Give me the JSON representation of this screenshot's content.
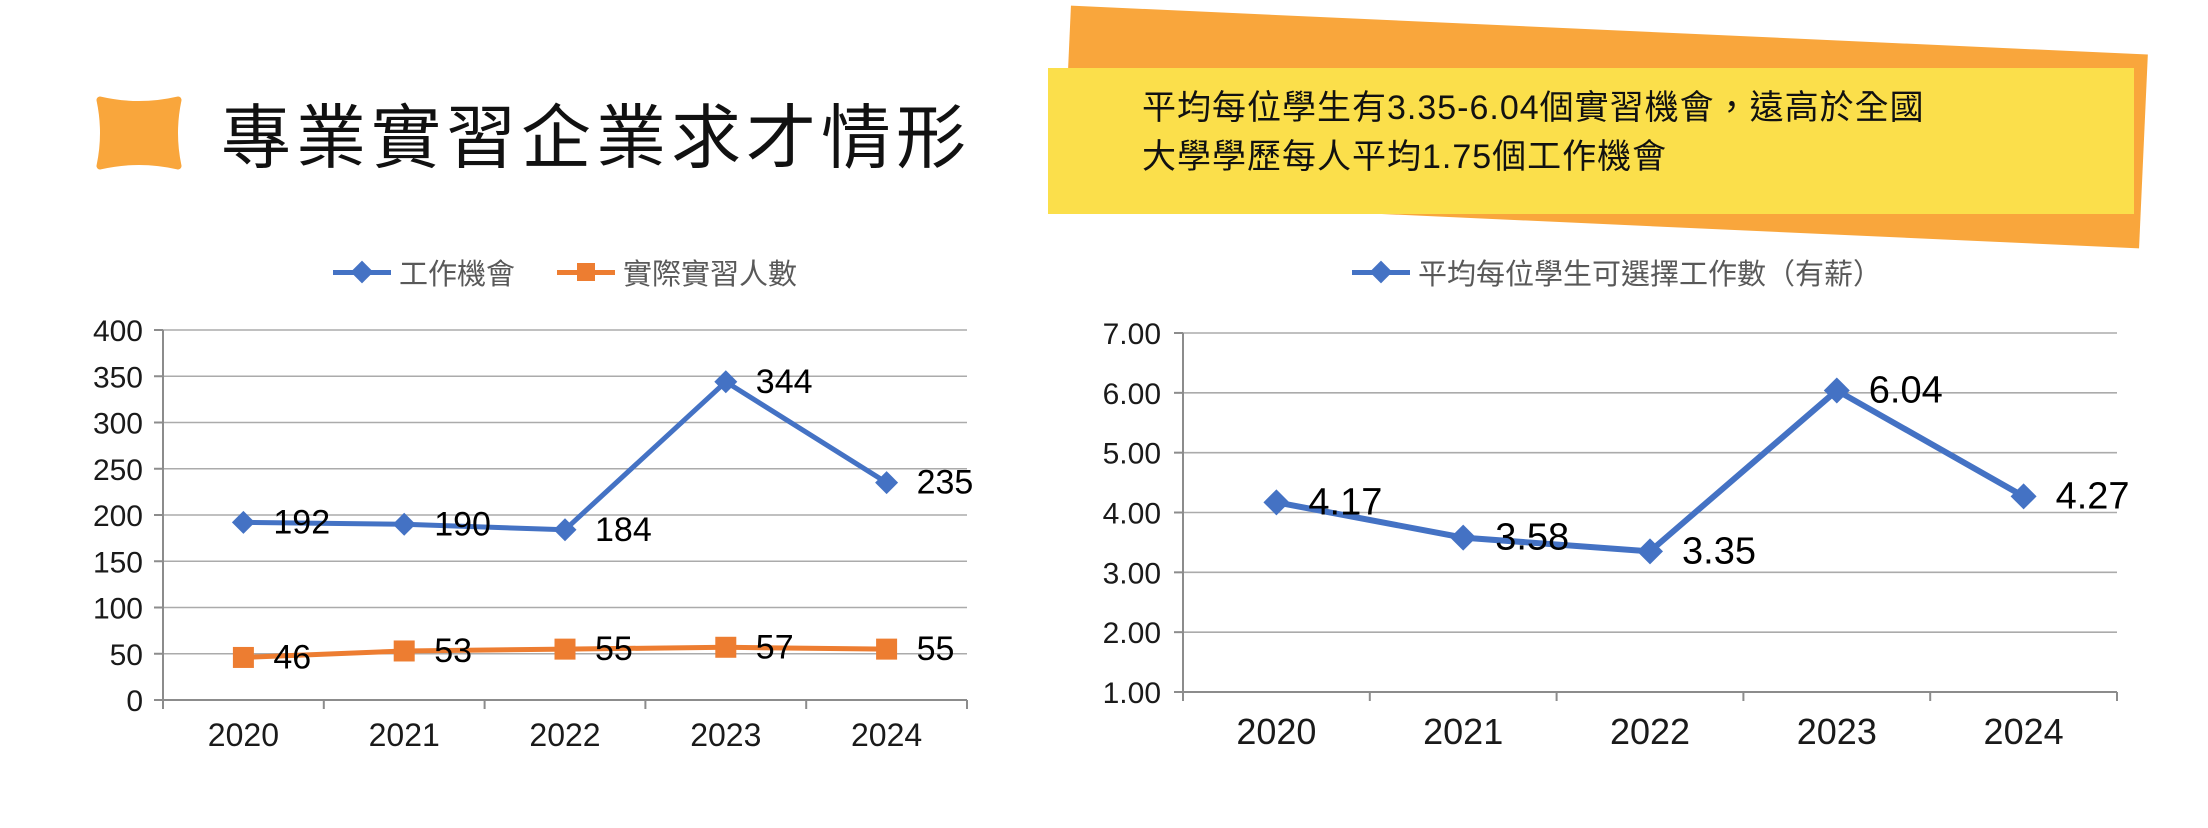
{
  "slide": {
    "title": "專業實習企業求才情形",
    "accent_color": "#F9A63C",
    "callout": {
      "line1": "平均每位學生有3.35-6.04個實習機會，遠高於全國",
      "line2": "大學學歷每人平均1.75個工作機會",
      "bg_color": "#FBDF4B",
      "accent_color": "#F9A63C"
    }
  },
  "chart_data": [
    {
      "type": "line",
      "title": "",
      "legend_position": "top",
      "categories": [
        "2020",
        "2021",
        "2022",
        "2023",
        "2024"
      ],
      "series": [
        {
          "name": "工作機會",
          "color": "#4472C4",
          "marker": "diamond",
          "values": [
            192,
            190,
            184,
            344,
            235
          ],
          "labels": [
            "192",
            "190",
            "184",
            "344",
            "235"
          ]
        },
        {
          "name": "實際實習人數",
          "color": "#ED7D31",
          "marker": "square",
          "values": [
            46,
            53,
            55,
            57,
            55
          ],
          "labels": [
            "46",
            "53",
            "55",
            "57",
            "55"
          ]
        }
      ],
      "xlabel": "",
      "ylabel": "",
      "ylim": [
        0,
        400
      ],
      "ytick_step": 50,
      "ytick_labels": [
        "400",
        "350",
        "300",
        "250",
        "200",
        "150",
        "100",
        "50",
        "0"
      ],
      "grid": true
    },
    {
      "type": "line",
      "title": "",
      "legend_position": "top",
      "categories": [
        "2020",
        "2021",
        "2022",
        "2023",
        "2024"
      ],
      "series": [
        {
          "name": "平均每位學生可選擇工作數（有薪）",
          "color": "#4472C4",
          "marker": "diamond",
          "values": [
            4.17,
            3.58,
            3.35,
            6.04,
            4.27
          ],
          "labels": [
            "4.17",
            "3.58",
            "3.35",
            "6.04",
            "4.27"
          ]
        }
      ],
      "xlabel": "",
      "ylabel": "",
      "ylim": [
        1,
        7
      ],
      "ytick_step": 1,
      "ytick_labels": [
        "7.00",
        "6.00",
        "5.00",
        "4.00",
        "3.00",
        "2.00",
        "1.00"
      ],
      "grid": true
    }
  ],
  "chart_style": {
    "grid_color": "#ABABAB",
    "axis_color": "#8C8C8C",
    "tick_label_color": "#1A1A1A",
    "data_label_color": "#000000"
  }
}
